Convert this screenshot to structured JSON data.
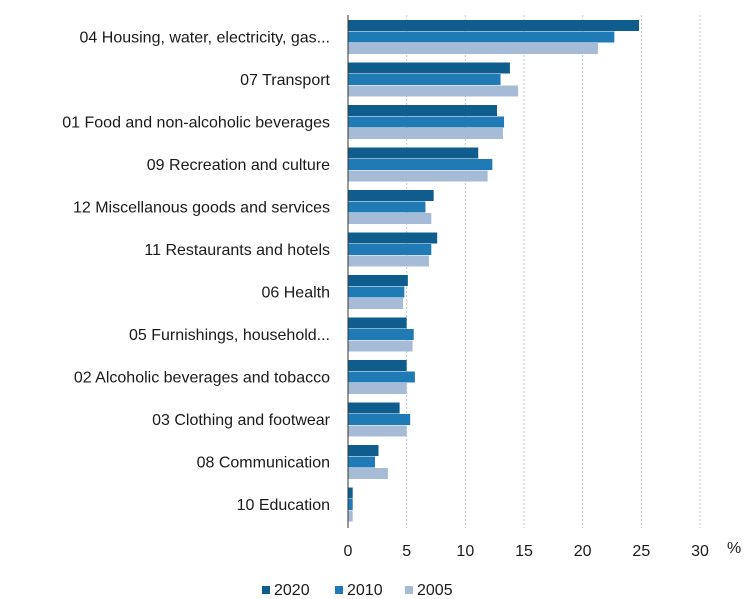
{
  "chart_data": {
    "type": "bar",
    "orientation": "horizontal",
    "title": "",
    "xlabel": "",
    "ylabel": "",
    "unit": "%",
    "xlim": [
      0,
      30
    ],
    "xticks": [
      0,
      5,
      10,
      15,
      20,
      25,
      30
    ],
    "grid": "vertical-dashed",
    "legend_position": "bottom-left",
    "categories": [
      "04 Housing, water, electricity, gas...",
      "07 Transport",
      "01 Food and non-alcoholic beverages",
      "09 Recreation and culture",
      "12 Miscellanous goods and services",
      "11 Restaurants and hotels",
      "06 Health",
      "05 Furnishings, household...",
      "02 Alcoholic beverages and tobacco",
      "03 Clothing and footwear",
      "08 Communication",
      "10 Education"
    ],
    "series": [
      {
        "name": "2020",
        "color": "#0f5d8c",
        "values": [
          24.8,
          13.8,
          12.7,
          11.1,
          7.3,
          7.6,
          5.1,
          5.0,
          5.0,
          4.4,
          2.6,
          0.4
        ]
      },
      {
        "name": "2010",
        "color": "#1f7ab5",
        "values": [
          22.7,
          13.0,
          13.3,
          12.3,
          6.6,
          7.1,
          4.8,
          5.6,
          5.7,
          5.3,
          2.3,
          0.4
        ]
      },
      {
        "name": "2005",
        "color": "#a6bcd6",
        "values": [
          21.3,
          14.5,
          13.2,
          11.9,
          7.1,
          6.9,
          4.7,
          5.5,
          5.0,
          5.0,
          3.4,
          0.4
        ]
      }
    ]
  }
}
